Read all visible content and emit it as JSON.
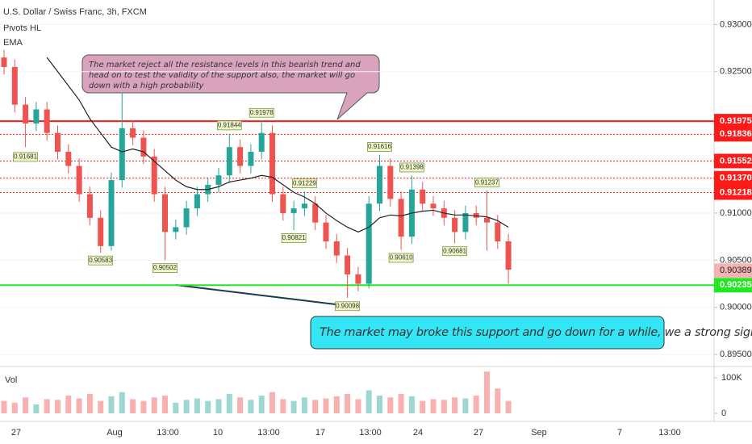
{
  "chart_data": {
    "type": "candlestick",
    "title": "U.S. Dollar / Swiss Franc, 3h, FXCM",
    "indicators": [
      "Pivots HL",
      "EMA"
    ],
    "volume_title": "Vol",
    "x_labels": [
      "27",
      "Aug",
      "13:00",
      "10",
      "13:00",
      "17",
      "13:00",
      "24",
      "27",
      "Sep",
      "7",
      "13:00"
    ],
    "open": [
      0.9265,
      0.9255,
      0.9215,
      0.9195,
      0.921,
      0.9185,
      0.9165,
      0.915,
      0.912,
      0.9095,
      0.9065,
      0.9135,
      0.919,
      0.918,
      0.916,
      0.912,
      0.908,
      0.9085,
      0.9105,
      0.912,
      0.913,
      0.914,
      0.917,
      0.915,
      0.9165,
      0.9185,
      0.912,
      0.91,
      0.9105,
      0.911,
      0.909,
      0.907,
      0.9055,
      0.9035,
      0.9025,
      0.911,
      0.915,
      0.9115,
      0.9075,
      0.9125,
      0.911,
      0.9105,
      0.9095,
      0.908,
      0.91,
      0.9095,
      0.909,
      0.907
    ],
    "high": [
      0.9273,
      0.9263,
      0.9223,
      0.9218,
      0.9218,
      0.9193,
      0.9173,
      0.9158,
      0.9128,
      0.9103,
      0.9143,
      0.9228,
      0.9198,
      0.9188,
      0.9168,
      0.9128,
      0.9093,
      0.9113,
      0.9128,
      0.9138,
      0.9148,
      0.9184,
      0.9178,
      0.9173,
      0.9198,
      0.9193,
      0.9128,
      0.9113,
      0.9123,
      0.9118,
      0.9098,
      0.9078,
      0.9063,
      0.9043,
      0.9118,
      0.9162,
      0.9158,
      0.9123,
      0.914,
      0.9133,
      0.9118,
      0.9113,
      0.9103,
      0.9108,
      0.9108,
      0.9124,
      0.9098,
      0.9078
    ],
    "low": [
      0.9247,
      0.9207,
      0.917,
      0.9187,
      0.9177,
      0.9157,
      0.9142,
      0.9112,
      0.9087,
      0.9058,
      0.906,
      0.9127,
      0.9172,
      0.9152,
      0.9112,
      0.905,
      0.9072,
      0.9077,
      0.9097,
      0.9112,
      0.9122,
      0.9132,
      0.9142,
      0.9142,
      0.9157,
      0.9112,
      0.9092,
      0.9082,
      0.9097,
      0.9082,
      0.9062,
      0.9047,
      0.901,
      0.9017,
      0.902,
      0.9102,
      0.9107,
      0.9061,
      0.9067,
      0.9102,
      0.9097,
      0.9087,
      0.9068,
      0.9072,
      0.9087,
      0.906,
      0.9062,
      0.9025
    ],
    "close": [
      0.9255,
      0.9215,
      0.9195,
      0.921,
      0.9185,
      0.9165,
      0.915,
      0.912,
      0.9095,
      0.9065,
      0.9135,
      0.919,
      0.918,
      0.916,
      0.912,
      0.908,
      0.9085,
      0.9105,
      0.912,
      0.913,
      0.914,
      0.917,
      0.915,
      0.9165,
      0.9185,
      0.912,
      0.91,
      0.9105,
      0.911,
      0.909,
      0.907,
      0.9055,
      0.9035,
      0.9025,
      0.911,
      0.915,
      0.9115,
      0.9075,
      0.9125,
      0.911,
      0.9105,
      0.9095,
      0.908,
      0.91,
      0.9095,
      0.909,
      0.907,
      0.904
    ],
    "ema": [
      null,
      null,
      null,
      null,
      0.9265,
      0.925,
      0.9235,
      0.922,
      0.92,
      0.9185,
      0.917,
      0.9165,
      0.9168,
      0.9165,
      0.9155,
      0.9145,
      0.9135,
      0.9128,
      0.9125,
      0.9125,
      0.9128,
      0.9133,
      0.9135,
      0.9137,
      0.914,
      0.9138,
      0.913,
      0.9122,
      0.9117,
      0.911,
      0.91,
      0.9092,
      0.9085,
      0.908,
      0.9085,
      0.9095,
      0.9098,
      0.9097,
      0.91,
      0.9102,
      0.9103,
      0.91,
      0.9098,
      0.9098,
      0.9097,
      0.9096,
      0.9092,
      0.9085
    ],
    "ema_color": "#222222",
    "up_color": "#26a69a",
    "down_color": "#ef5350",
    "pivot_highs": {
      "values": [
        null,
        null,
        null,
        null,
        null,
        null,
        null,
        null,
        null,
        null,
        null,
        null,
        null,
        null,
        null,
        null,
        null,
        null,
        null,
        null,
        null,
        0.91844,
        null,
        null,
        0.91978,
        null,
        null,
        null,
        0.91229,
        null,
        null,
        null,
        null,
        null,
        null,
        0.91616,
        null,
        null,
        0.91398,
        null,
        null,
        null,
        null,
        null,
        null,
        0.91237,
        null,
        null
      ]
    },
    "pivot_lows": {
      "values": [
        null,
        null,
        0.91681,
        null,
        null,
        null,
        null,
        null,
        null,
        0.90583,
        null,
        null,
        null,
        null,
        null,
        0.90502,
        null,
        null,
        null,
        null,
        null,
        null,
        null,
        null,
        null,
        null,
        null,
        0.90821,
        null,
        null,
        null,
        null,
        0.90098,
        null,
        null,
        null,
        null,
        0.9061,
        null,
        null,
        null,
        null,
        0.90681,
        null,
        null,
        null,
        null,
        null
      ],
      "value_labels": [
        null,
        null,
        null,
        null,
        null,
        null,
        null,
        null,
        null,
        null,
        null,
        null,
        null,
        null,
        null,
        null,
        null,
        null,
        null,
        null,
        null,
        null,
        null,
        null,
        null,
        null,
        null,
        null,
        null,
        null,
        null,
        null,
        null,
        null,
        null,
        null,
        null,
        "0.90610",
        null,
        null,
        null,
        null,
        null,
        null,
        null,
        null,
        null,
        null
      ]
    },
    "volume": {
      "values": [
        35,
        30,
        45,
        25,
        40,
        38,
        50,
        42,
        55,
        35,
        48,
        60,
        40,
        35,
        45,
        50,
        30,
        38,
        42,
        35,
        40,
        55,
        45,
        38,
        50,
        60,
        40,
        35,
        45,
        38,
        42,
        48,
        55,
        40,
        65,
        50,
        45,
        55,
        48,
        35,
        40,
        38,
        45,
        42,
        50,
        118,
        70,
        35
      ]
    },
    "vlim": [
      0,
      130
    ],
    "vticks": [
      {
        "value": 100,
        "label": "100K"
      },
      0
    ],
    "ylim": [
      0.8939,
      0.9326
    ],
    "yticks": [
      {
        "value": 0.93,
        "label": "0.93000"
      },
      {
        "value": 0.925,
        "label": "0.92500"
      },
      {
        "value": 0.91,
        "label": "0.91000"
      },
      {
        "value": 0.905,
        "label": "0.90500"
      },
      {
        "value": 0.9,
        "label": "0.90000"
      },
      {
        "value": 0.895,
        "label": "0.89500"
      }
    ],
    "grid": true,
    "levels": [
      {
        "value": 0.91975,
        "color": "#ff1a1a",
        "style": "solid"
      },
      {
        "value": 0.91836,
        "color": "#ff1a1a",
        "style": "dotted"
      },
      {
        "value": 0.91552,
        "color": "#ff1a1a",
        "style": "dotted"
      },
      {
        "value": 0.9137,
        "label": "0.91370",
        "color": "#ff1a1a",
        "style": "dotted"
      },
      {
        "value": 0.91218,
        "color": "#ff1a1a",
        "style": "dotted"
      },
      {
        "value": 0.90235,
        "color": "#22e822",
        "style": "solid"
      }
    ],
    "last_price": {
      "value": 0.90389,
      "color": "#f6b3b3"
    },
    "annotations": [
      "The market reject all the resistance levels in this bearish trend and head on to test the validity of the support also, the market will go down with a high probability",
      "The market may broke this support and go down for a while, we a strong sign of volume that the market will stay in downtrend"
    ]
  }
}
